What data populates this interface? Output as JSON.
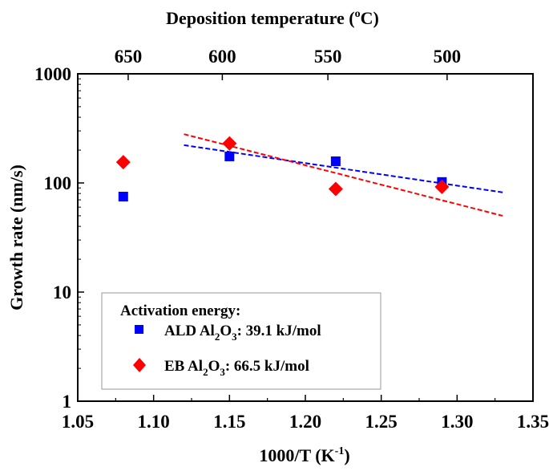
{
  "chart_data": {
    "type": "scatter",
    "title": "",
    "xlabel": "1000/T (K",
    "xlabel_sup": "-1",
    "xlabel_end": ")",
    "x2label": "Deposition temperature (",
    "x2label_sup": "o",
    "x2label_end": "C)",
    "ylabel": "Growth rate (nm/s)",
    "xlim": [
      1.05,
      1.35
    ],
    "ylim": [
      1,
      1000
    ],
    "yscale": "log",
    "grid": false,
    "xticks": [
      "1.05",
      "1.10",
      "1.15",
      "1.20",
      "1.25",
      "1.30",
      "1.35"
    ],
    "yticks": [
      "1",
      "10",
      "100",
      "1000"
    ],
    "x2ticks": [
      "650",
      "600",
      "550",
      "500"
    ],
    "legend": {
      "placement": "bottom-left",
      "title": "Activation energy:",
      "entries": [
        {
          "pre": "ALD Al",
          "sub1": "2",
          "mid": "O",
          "sub2": "3",
          "post": ": 39.1 kJ/mol"
        },
        {
          "pre": "EB Al",
          "sub1": "2",
          "mid": "O",
          "sub2": "3",
          "post": ": 66.5 kJ/mol"
        }
      ]
    },
    "series": [
      {
        "name": "ALD Al2O3",
        "marker": "square",
        "color": "#0000ff",
        "x": [
          1.08,
          1.15,
          1.22,
          1.29
        ],
        "y": [
          75,
          175,
          158,
          102
        ],
        "fit": {
          "x": [
            1.12,
            1.33
          ],
          "y": [
            222,
            82
          ]
        }
      },
      {
        "name": "EB Al2O3",
        "marker": "diamond",
        "color": "#ff0000",
        "x": [
          1.08,
          1.15,
          1.22,
          1.29
        ],
        "y": [
          155,
          230,
          88,
          92
        ],
        "fit": {
          "x": [
            1.12,
            1.33
          ],
          "y": [
            280,
            50
          ]
        }
      }
    ]
  }
}
